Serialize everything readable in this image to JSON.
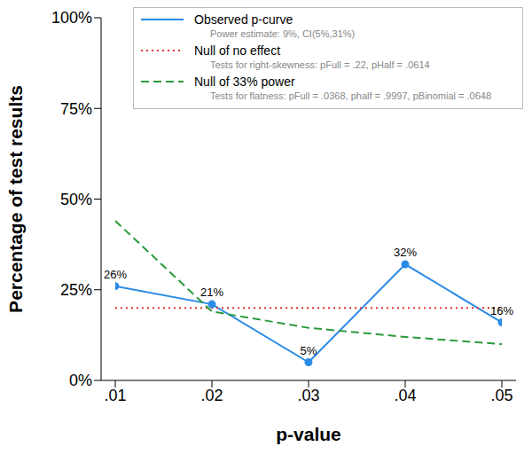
{
  "chart_data": {
    "type": "line",
    "xlabel": "p-value",
    "ylabel": "Percentage of test results",
    "x": [
      0.01,
      0.02,
      0.03,
      0.04,
      0.05
    ],
    "xlim": [
      0.01,
      0.05
    ],
    "xticks": [
      {
        "value": 0.01,
        "label": ".01"
      },
      {
        "value": 0.02,
        "label": ".02"
      },
      {
        "value": 0.03,
        "label": ".03"
      },
      {
        "value": 0.04,
        "label": ".04"
      },
      {
        "value": 0.05,
        "label": ".05"
      }
    ],
    "ylim": [
      0,
      100
    ],
    "yticks": [
      {
        "value": 0,
        "label": "0%"
      },
      {
        "value": 25,
        "label": "25%"
      },
      {
        "value": 50,
        "label": "50%"
      },
      {
        "value": 75,
        "label": "75%"
      },
      {
        "value": 100,
        "label": "100%"
      }
    ],
    "legend": "top-right",
    "series": [
      {
        "name": "Observed p-curve",
        "note": "Power estimate: 9%, CI(5%,31%)",
        "color": "#2b8be6",
        "line_style": "solid",
        "marker": "circle",
        "data_labels": true,
        "values": [
          26,
          21,
          5,
          32,
          16
        ],
        "value_labels": [
          "26%",
          "21%",
          "5%",
          "32%",
          "16%"
        ]
      },
      {
        "name": "Null of no effect",
        "note": "Tests for right-skewness: pFull = .22,  pHalf = .0614",
        "color": "#e3342f",
        "line_style": "dotted",
        "marker": "none",
        "values": [
          20,
          20,
          20,
          20,
          20
        ]
      },
      {
        "name": "Null of 33% power",
        "note": "Tests for flatness: pFull = .0368, phalf = .9997, pBinomial = .0648",
        "color": "#2a9a3c",
        "line_style": "dashed",
        "marker": "none",
        "values": [
          44,
          19,
          14.5,
          12,
          10
        ]
      }
    ]
  }
}
